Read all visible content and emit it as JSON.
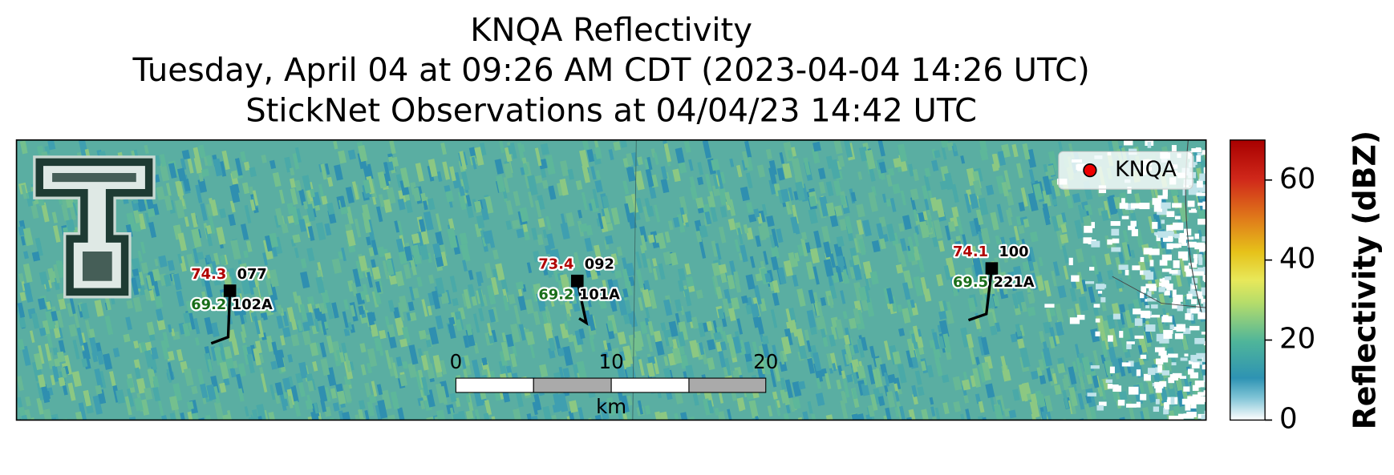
{
  "title": {
    "line1": "KNQA Reflectivity",
    "line2": "Tuesday, April 04 at 09:26 AM CDT (2023-04-04 14:26 UTC)",
    "line3": "StickNet Observations at 04/04/23 14:42 UTC"
  },
  "legend": {
    "label": "KNQA"
  },
  "stations": [
    {
      "temp": "74.3",
      "dir": "077",
      "dew": "69.2",
      "id": "102A"
    },
    {
      "temp": "73.4",
      "dir": "092",
      "dew": "69.2",
      "id": "101A"
    },
    {
      "temp": "74.1",
      "dir": "100",
      "dew": "69.5",
      "id": "221A"
    }
  ],
  "scale_bar": {
    "ticks": [
      "0",
      "10",
      "20"
    ],
    "unit": "km"
  },
  "colorbar": {
    "label": "Reflectivity (dBZ)",
    "lim": [
      0,
      70
    ],
    "ticks": [
      0,
      20,
      40,
      60
    ]
  }
}
